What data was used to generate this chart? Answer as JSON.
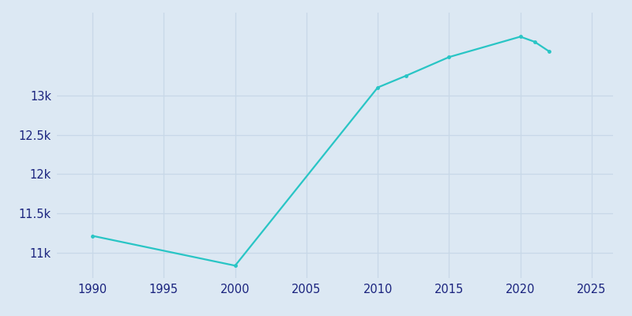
{
  "years": [
    1990,
    2000,
    2010,
    2012,
    2015,
    2020,
    2021,
    2022
  ],
  "population": [
    11216,
    10838,
    13100,
    13250,
    13486,
    13745,
    13680,
    13560
  ],
  "line_color": "#29c5c5",
  "marker_color": "#29c5c5",
  "background_color": "#dce8f3",
  "plot_bg_color": "#dce8f3",
  "grid_color": "#c8d8e8",
  "tick_label_color": "#1a237e",
  "xlim": [
    1987.5,
    2026.5
  ],
  "ylim": [
    10680,
    14050
  ],
  "xticks": [
    1990,
    1995,
    2000,
    2005,
    2010,
    2015,
    2020,
    2025
  ],
  "yticks": [
    11000,
    11500,
    12000,
    12500,
    13000
  ],
  "figwidth": 8.0,
  "figheight": 4.0,
  "dpi": 100
}
